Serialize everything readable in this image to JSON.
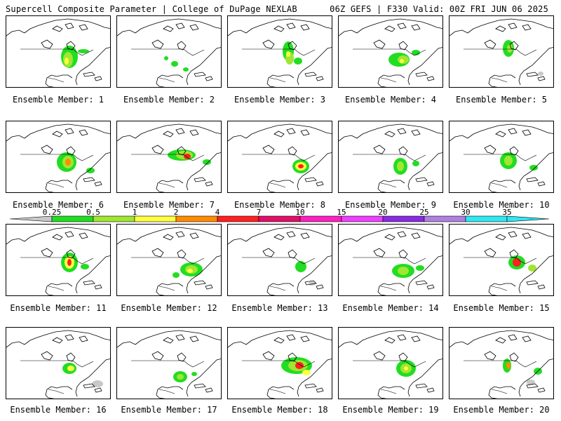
{
  "header": {
    "title_left": "Supercell Composite Parameter | College of DuPage NEXLAB",
    "title_right": "06Z GEFS | F330 Valid: 00Z FRI JUN 06 2025"
  },
  "member_label_prefix": "Ensemble Member: ",
  "members": [
    {
      "label": "Ensemble Member: 1"
    },
    {
      "label": "Ensemble Member: 2"
    },
    {
      "label": "Ensemble Member: 3"
    },
    {
      "label": "Ensemble Member: 4"
    },
    {
      "label": "Ensemble Member: 5"
    },
    {
      "label": "Ensemble Member: 6"
    },
    {
      "label": "Ensemble Member: 7"
    },
    {
      "label": "Ensemble Member: 8"
    },
    {
      "label": "Ensemble Member: 9"
    },
    {
      "label": "Ensemble Member: 10"
    },
    {
      "label": "Ensemble Member: 11"
    },
    {
      "label": "Ensemble Member: 12"
    },
    {
      "label": "Ensemble Member: 13"
    },
    {
      "label": "Ensemble Member: 14"
    },
    {
      "label": "Ensemble Member: 15"
    },
    {
      "label": "Ensemble Member: 16"
    },
    {
      "label": "Ensemble Member: 17"
    },
    {
      "label": "Ensemble Member: 18"
    },
    {
      "label": "Ensemble Member: 19"
    },
    {
      "label": "Ensemble Member: 20"
    }
  ],
  "colorbar": {
    "ticks": [
      "0.25",
      "0.5",
      "1",
      "2",
      "4",
      "7",
      "10",
      "15",
      "20",
      "25",
      "30",
      "35"
    ],
    "colors": [
      "#c8c8c8",
      "#22dd22",
      "#a0e632",
      "#ffff40",
      "#ff8c00",
      "#ff2020",
      "#e0106a",
      "#ff20c0",
      "#ee40ff",
      "#8a2be2",
      "#b080e0",
      "#30e8f0"
    ]
  }
}
